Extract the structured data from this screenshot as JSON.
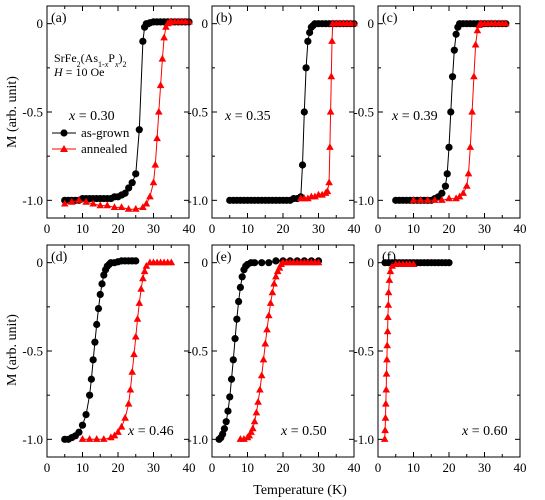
{
  "figure": {
    "ylabel": "M (arb. unit)",
    "xlabel": "Temperature (K)",
    "compound": "SrFe2(As1-xPx)2",
    "field": "H = 10 Oe"
  },
  "legend": {
    "asgrown": "as-grown",
    "annealed": "annealed"
  },
  "colors": {
    "asgrown": "#000000",
    "annealed": "#ff0000"
  },
  "chart_data": [
    {
      "type": "scatter",
      "panel": "(a)",
      "x_label": "x = 0.30",
      "xlim": [
        0,
        40
      ],
      "ylim": [
        -1.1,
        0.1
      ],
      "xticks": [
        "0",
        "10",
        "20",
        "30",
        "40"
      ],
      "yticks": [
        "0",
        "-0.5",
        "-1.0"
      ],
      "series": [
        {
          "name": "as-grown",
          "marker": "circle",
          "color": "#000000",
          "x": [
            5,
            6,
            7,
            8,
            9,
            10,
            11,
            12,
            13,
            14,
            15,
            16,
            17,
            18,
            19,
            20,
            21,
            22,
            23,
            24,
            25,
            26,
            27,
            27.5,
            28,
            28.5,
            29,
            30,
            31,
            32,
            33,
            34,
            35,
            36,
            37,
            38,
            39,
            40
          ],
          "y": [
            -1.0,
            -1.0,
            -1.0,
            -1.0,
            -1.0,
            -0.99,
            -0.99,
            -0.99,
            -0.99,
            -0.99,
            -0.99,
            -0.99,
            -0.99,
            -0.99,
            -0.98,
            -0.98,
            -0.97,
            -0.96,
            -0.93,
            -0.9,
            -0.85,
            -0.6,
            -0.1,
            -0.02,
            0,
            0,
            0.005,
            0.01,
            0.01,
            0.01,
            0.01,
            0.01,
            0.01,
            0.01,
            0.01,
            0.01,
            0.01,
            0.01
          ]
        },
        {
          "name": "annealed",
          "marker": "triangle",
          "color": "#ff0000",
          "x": [
            5,
            7,
            9,
            11,
            13,
            15,
            17,
            19,
            21,
            23,
            25,
            27,
            28,
            29,
            30,
            30.5,
            31,
            31.5,
            32,
            32.5,
            33,
            33.5,
            34,
            34.5,
            35,
            36,
            37,
            38,
            39,
            40
          ],
          "y": [
            -1.02,
            -1.01,
            -1.0,
            -1.01,
            -1.02,
            -1.03,
            -1.03,
            -1.04,
            -1.04,
            -1.05,
            -1.05,
            -1.04,
            -1.02,
            -0.98,
            -0.9,
            -0.8,
            -0.65,
            -0.5,
            -0.35,
            -0.2,
            -0.08,
            -0.02,
            0,
            0.005,
            0.01,
            0.01,
            0.01,
            0.01,
            0.01,
            0.01
          ]
        }
      ]
    },
    {
      "type": "scatter",
      "panel": "(b)",
      "x_label": "x = 0.35",
      "xlim": [
        0,
        40
      ],
      "ylim": [
        -1.1,
        0.1
      ],
      "xticks": [
        "0",
        "10",
        "20",
        "30",
        "40"
      ],
      "yticks": [
        "0",
        "-0.5",
        "-1.0"
      ],
      "series": [
        {
          "name": "as-grown",
          "marker": "circle",
          "color": "#000000",
          "x": [
            5,
            6,
            7,
            8,
            9,
            10,
            11,
            12,
            13,
            14,
            15,
            16,
            17,
            18,
            19,
            20,
            21,
            22,
            23,
            24,
            25,
            25.5,
            26,
            26.5,
            27,
            27.5,
            28,
            28.5,
            29,
            30,
            31,
            32,
            33,
            34,
            35,
            36,
            37,
            38,
            39,
            40
          ],
          "y": [
            -1.0,
            -1.0,
            -1.0,
            -1.0,
            -1.0,
            -1.0,
            -1.0,
            -1.0,
            -1.0,
            -1.0,
            -1.0,
            -1.0,
            -1.0,
            -1.0,
            -1.0,
            -1.0,
            -1.0,
            -1.0,
            -0.99,
            -0.99,
            -0.98,
            -0.8,
            -0.5,
            -0.25,
            -0.1,
            -0.05,
            -0.02,
            -0.01,
            0,
            0,
            0,
            0,
            0,
            0,
            0,
            0,
            0,
            0,
            0,
            0
          ]
        },
        {
          "name": "annealed",
          "marker": "triangle",
          "color": "#ff0000",
          "x": [
            25,
            26,
            27,
            28,
            29,
            30,
            31,
            32,
            32.5,
            33,
            33.2,
            33.4,
            33.6,
            33.8,
            34,
            35,
            36,
            37,
            38,
            39,
            40
          ],
          "y": [
            -0.99,
            -0.99,
            -0.99,
            -0.98,
            -0.98,
            -0.97,
            -0.97,
            -0.96,
            -0.95,
            -0.9,
            -0.7,
            -0.5,
            -0.3,
            -0.1,
            0,
            0,
            0,
            0,
            0,
            0,
            0
          ]
        }
      ]
    },
    {
      "type": "scatter",
      "panel": "(c)",
      "x_label": "x = 0.39",
      "xlim": [
        0,
        40
      ],
      "ylim": [
        -1.1,
        0.1
      ],
      "xticks": [
        "0",
        "10",
        "20",
        "30",
        "40"
      ],
      "yticks": [
        "0",
        "-0.5",
        "-1.0"
      ],
      "series": [
        {
          "name": "as-grown",
          "marker": "circle",
          "color": "#000000",
          "x": [
            5,
            6,
            7,
            8,
            9,
            10,
            11,
            12,
            13,
            14,
            15,
            16,
            17,
            18,
            19,
            19.5,
            20,
            20.5,
            21,
            21.5,
            22,
            22.5,
            23,
            24,
            25,
            26,
            27,
            28,
            29,
            30,
            31,
            32,
            33,
            34,
            35,
            36
          ],
          "y": [
            -1.0,
            -1.0,
            -1.0,
            -1.0,
            -1.0,
            -1.0,
            -1.0,
            -1.0,
            -1.0,
            -1.0,
            -1.0,
            -0.99,
            -0.98,
            -0.96,
            -0.92,
            -0.85,
            -0.7,
            -0.5,
            -0.3,
            -0.15,
            -0.06,
            -0.02,
            0,
            0,
            0,
            0,
            0,
            0,
            0,
            0,
            0,
            0,
            0,
            0,
            0,
            0
          ]
        },
        {
          "name": "annealed",
          "marker": "triangle",
          "color": "#ff0000",
          "x": [
            10,
            12,
            14,
            16,
            18,
            20,
            22,
            23,
            24,
            25,
            25.5,
            26,
            26.5,
            27,
            27.5,
            28,
            28.5,
            29,
            30,
            31,
            32,
            33,
            34,
            35,
            36
          ],
          "y": [
            -1.0,
            -1.0,
            -1.0,
            -1.0,
            -1.0,
            -0.99,
            -0.99,
            -0.98,
            -0.96,
            -0.92,
            -0.85,
            -0.7,
            -0.5,
            -0.3,
            -0.12,
            -0.04,
            -0.01,
            0,
            0,
            0,
            0,
            0,
            0,
            0,
            0
          ]
        }
      ]
    },
    {
      "type": "scatter",
      "panel": "(d)",
      "x_label": "x = 0.46",
      "xlim": [
        0,
        40
      ],
      "ylim": [
        -1.1,
        0.1
      ],
      "xticks": [
        "0",
        "10",
        "20",
        "30",
        "40"
      ],
      "yticks": [
        "0",
        "-0.5",
        "-1.0"
      ],
      "series": [
        {
          "name": "as-grown",
          "marker": "circle",
          "color": "#000000",
          "x": [
            5,
            6,
            7,
            8,
            9,
            10,
            11,
            12,
            12.5,
            13,
            13.5,
            14,
            14.5,
            15,
            15.5,
            16,
            16.5,
            17,
            17.5,
            18,
            19,
            20,
            21,
            22,
            23,
            24,
            25
          ],
          "y": [
            -1.0,
            -1.0,
            -0.99,
            -0.98,
            -0.96,
            -0.92,
            -0.86,
            -0.75,
            -0.66,
            -0.55,
            -0.45,
            -0.35,
            -0.26,
            -0.18,
            -0.12,
            -0.07,
            -0.04,
            -0.02,
            -0.01,
            0,
            0,
            0.005,
            0.01,
            0.01,
            0.01,
            0.01,
            0.01
          ]
        },
        {
          "name": "annealed",
          "marker": "triangle",
          "color": "#ff0000",
          "x": [
            10,
            12,
            14,
            16,
            18,
            19,
            20,
            21,
            22,
            23,
            23.5,
            24,
            24.5,
            25,
            25.5,
            26,
            26.5,
            27,
            27.5,
            28,
            29,
            30,
            31,
            32,
            33,
            34,
            35
          ],
          "y": [
            -1.0,
            -1.0,
            -1.0,
            -1.0,
            -0.99,
            -0.98,
            -0.96,
            -0.93,
            -0.88,
            -0.8,
            -0.72,
            -0.62,
            -0.52,
            -0.42,
            -0.32,
            -0.23,
            -0.15,
            -0.09,
            -0.05,
            -0.02,
            0,
            0,
            0,
            0,
            0,
            0,
            0
          ]
        }
      ]
    },
    {
      "type": "scatter",
      "panel": "(e)",
      "x_label": "x = 0.50",
      "xlim": [
        0,
        40
      ],
      "ylim": [
        -1.1,
        0.1
      ],
      "xticks": [
        "0",
        "10",
        "20",
        "30",
        "40"
      ],
      "yticks": [
        "0",
        "-0.5",
        "-1.0"
      ],
      "series": [
        {
          "name": "as-grown",
          "marker": "circle",
          "color": "#000000",
          "x": [
            2,
            2.5,
            3,
            3.5,
            4,
            4.5,
            5,
            5.5,
            6,
            6.5,
            7,
            7.5,
            8,
            8.5,
            9,
            9.5,
            10,
            11,
            12,
            14,
            16,
            18,
            20,
            22,
            24,
            26,
            28,
            30
          ],
          "y": [
            -1.0,
            -0.99,
            -0.97,
            -0.94,
            -0.9,
            -0.84,
            -0.76,
            -0.66,
            -0.55,
            -0.43,
            -0.32,
            -0.22,
            -0.14,
            -0.08,
            -0.04,
            -0.02,
            -0.01,
            0,
            0,
            0,
            0,
            0.01,
            0.01,
            0.01,
            0.01,
            0.01,
            0.01,
            0.01
          ]
        },
        {
          "name": "annealed",
          "marker": "triangle",
          "color": "#ff0000",
          "x": [
            8,
            9,
            10,
            10.5,
            11,
            11.5,
            12,
            12.5,
            13,
            13.5,
            14,
            14.5,
            15,
            15.5,
            16,
            16.5,
            17,
            17.5,
            18,
            18.5,
            19,
            19.5,
            20,
            21,
            22,
            23,
            24,
            25,
            26,
            27,
            28,
            29,
            30
          ],
          "y": [
            -1.0,
            -1.0,
            -0.99,
            -0.98,
            -0.96,
            -0.94,
            -0.9,
            -0.85,
            -0.79,
            -0.72,
            -0.64,
            -0.55,
            -0.46,
            -0.38,
            -0.3,
            -0.23,
            -0.17,
            -0.12,
            -0.08,
            -0.05,
            -0.03,
            -0.01,
            0,
            0,
            0,
            0,
            0,
            0,
            0,
            0,
            0,
            0,
            0
          ]
        }
      ]
    },
    {
      "type": "scatter",
      "panel": "(f)",
      "x_label": "x = 0.60",
      "xlim": [
        0,
        40
      ],
      "ylim": [
        -1.1,
        0.1
      ],
      "xticks": [
        "0",
        "10",
        "20",
        "30",
        "40"
      ],
      "yticks": [
        "0",
        "-0.5",
        "-1.0"
      ],
      "series": [
        {
          "name": "as-grown",
          "marker": "circle",
          "color": "#000000",
          "x": [
            2,
            3,
            4,
            5,
            6,
            7,
            8,
            9,
            10,
            11,
            12,
            13,
            14,
            15,
            16,
            17,
            18,
            19,
            20
          ],
          "y": [
            0,
            0,
            0,
            0,
            0,
            0,
            0,
            0,
            0,
            0,
            0,
            0,
            0,
            0,
            0,
            0,
            0,
            0,
            0
          ]
        },
        {
          "name": "annealed",
          "marker": "triangle",
          "color": "#ff0000",
          "x": [
            1.9,
            2.0,
            2.1,
            2.2,
            2.3,
            2.4,
            2.5,
            2.6,
            2.7,
            2.8,
            2.9,
            3.0,
            3.2,
            3.5,
            4,
            5,
            6,
            7,
            8,
            9,
            10
          ],
          "y": [
            -1.0,
            -0.95,
            -0.88,
            -0.8,
            -0.72,
            -0.63,
            -0.55,
            -0.47,
            -0.39,
            -0.31,
            -0.24,
            -0.17,
            -0.1,
            -0.05,
            -0.02,
            -0.01,
            -0.01,
            -0.01,
            -0.01,
            -0.01,
            -0.01
          ]
        }
      ]
    }
  ]
}
